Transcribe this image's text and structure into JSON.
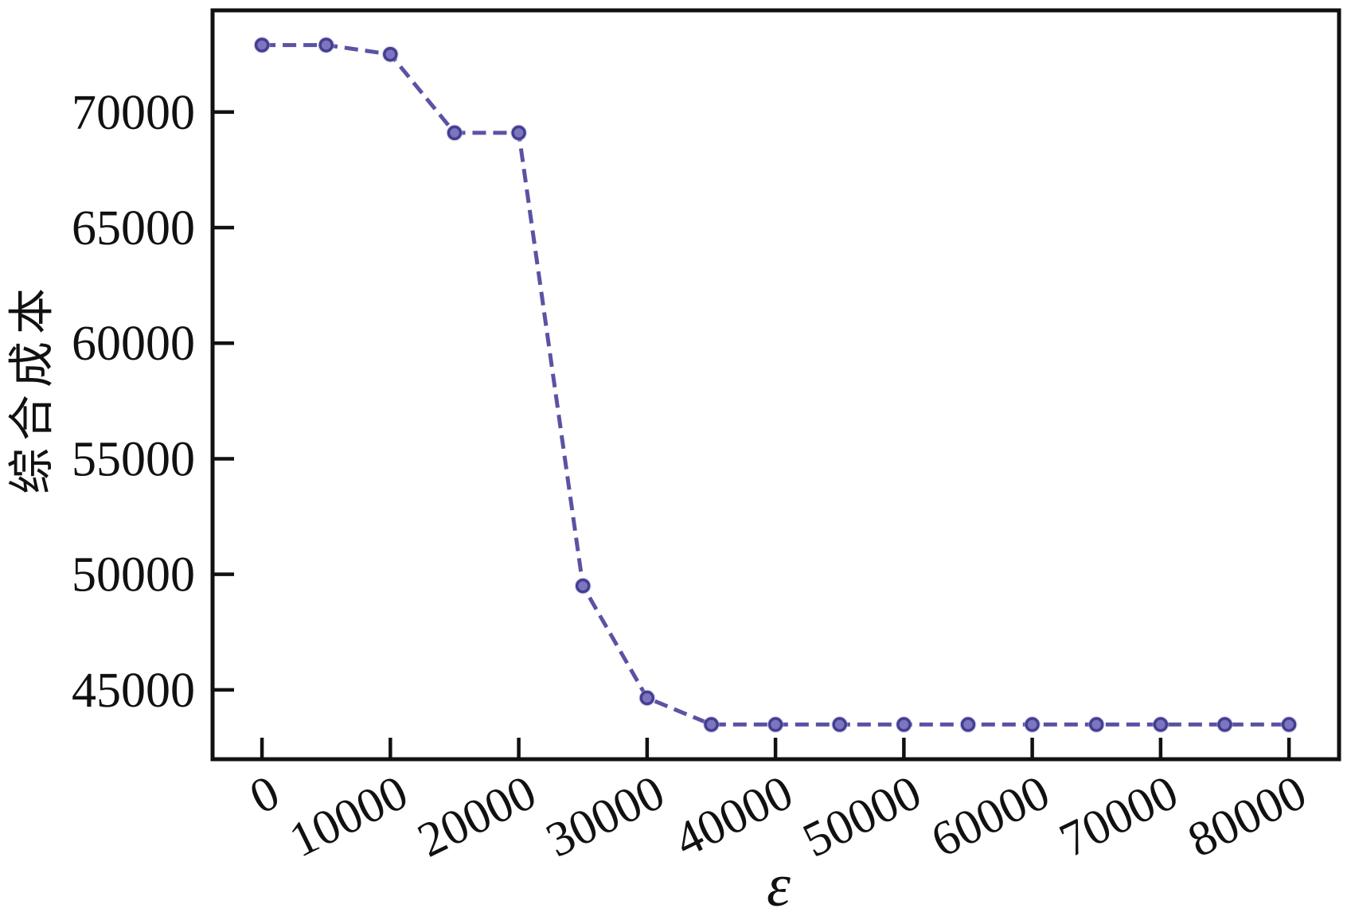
{
  "figure": {
    "background": "#ffffff"
  },
  "chart_data": {
    "type": "line",
    "title": "",
    "xlabel": "ε",
    "ylabel": "综合成本",
    "x": [
      0,
      5000,
      10000,
      15000,
      20000,
      25000,
      30000,
      35000,
      40000,
      45000,
      50000,
      55000,
      60000,
      65000,
      70000,
      75000,
      80000
    ],
    "series": [
      {
        "name": "综合成本",
        "values": [
          72900,
          72900,
          72500,
          69100,
          69100,
          49500,
          44650,
          43500,
          43500,
          43500,
          43500,
          43500,
          43500,
          43500,
          43500,
          43500,
          43500
        ],
        "line_style": "dashed",
        "marker": "circle"
      }
    ],
    "xticks": {
      "values": [
        0,
        10000,
        20000,
        30000,
        40000,
        50000,
        60000,
        70000,
        80000
      ],
      "labels": [
        "0",
        "10000",
        "20000",
        "30000",
        "40000",
        "50000",
        "60000",
        "70000",
        "80000"
      ]
    },
    "yticks": {
      "values": [
        45000,
        50000,
        55000,
        60000,
        65000,
        70000
      ],
      "labels": [
        "45000",
        "50000",
        "55000",
        "60000",
        "65000",
        "70000"
      ]
    },
    "xlim": [
      -3850,
      83900
    ],
    "ylim": [
      42000,
      74400
    ],
    "grid": false,
    "legend": "none",
    "colors": {
      "line": "#5a53a3",
      "marker_fill": "#7c76c0",
      "marker_edge": "#453e90",
      "marker_halo": "#b2ace0",
      "axis": "#111111",
      "text": "#111111"
    }
  }
}
